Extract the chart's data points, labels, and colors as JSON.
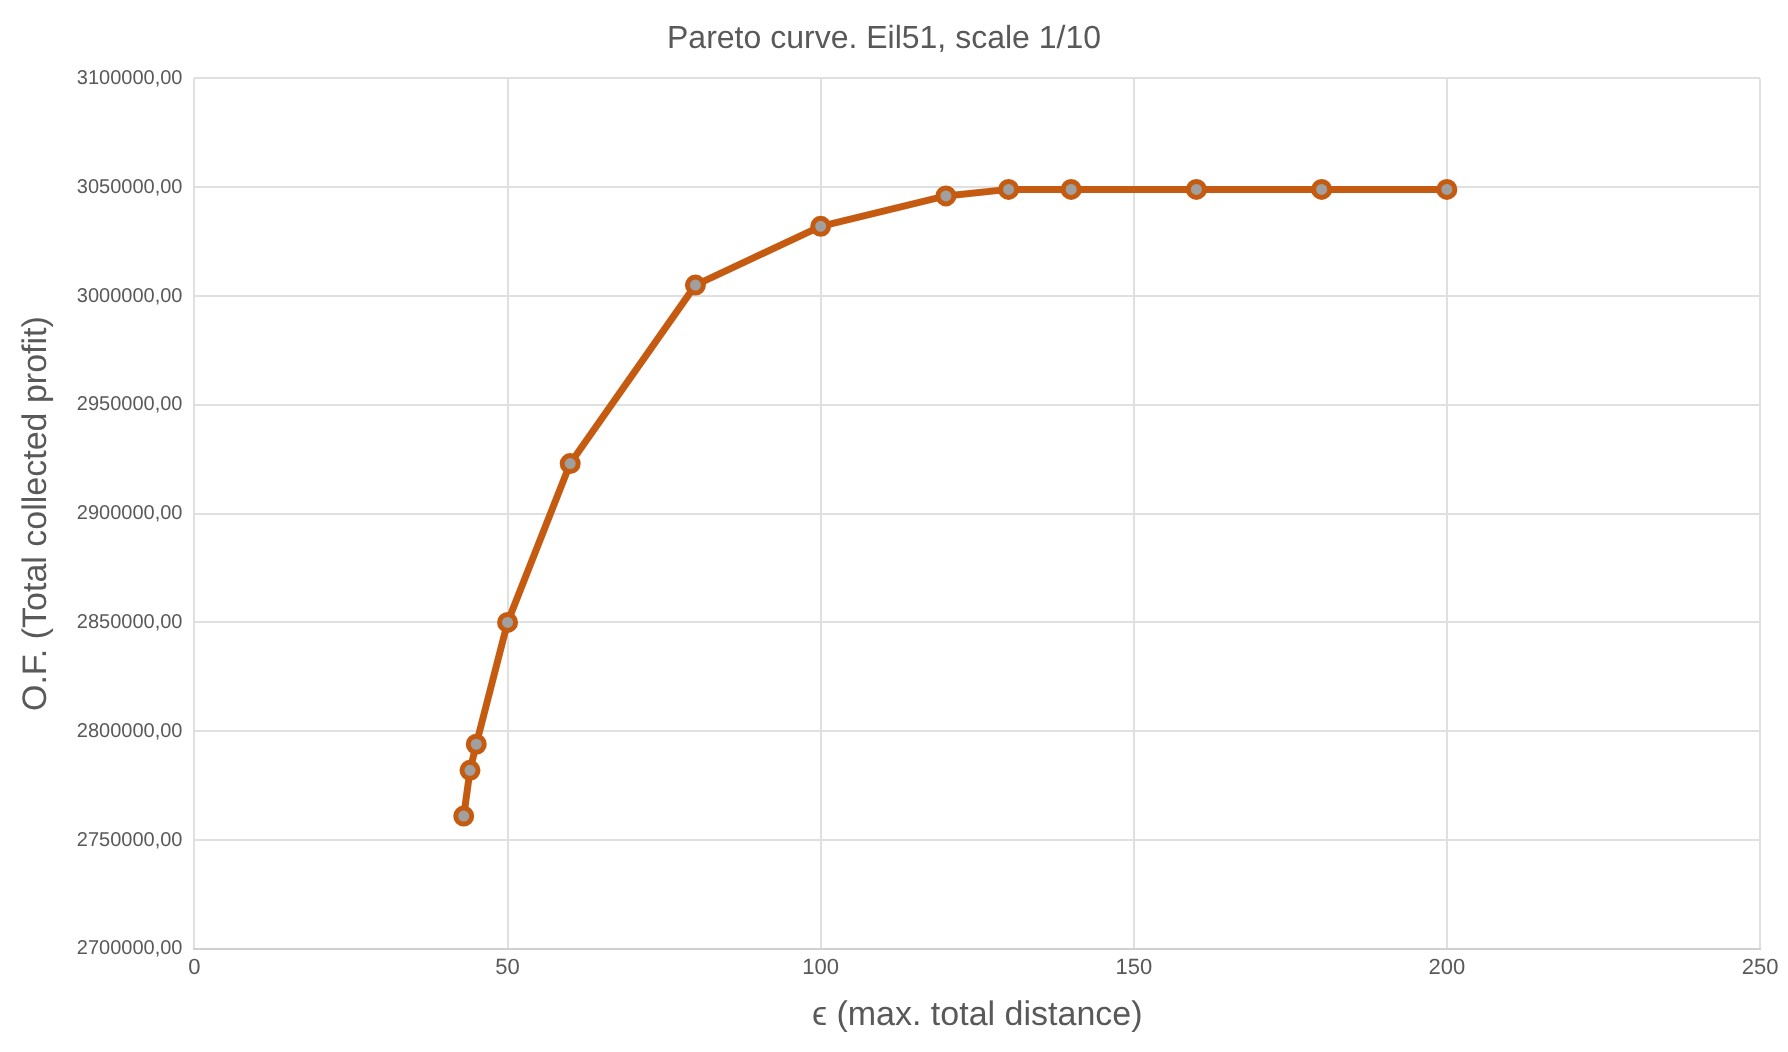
{
  "chart_data": {
    "type": "line",
    "title": "Pareto curve. Eil51, scale 1/10",
    "xlabel": "ϵ (max. total distance)",
    "ylabel": "O.F. (Total collected profit)",
    "x": [
      43,
      44,
      45,
      50,
      60,
      80,
      100,
      120,
      130,
      140,
      160,
      180,
      200
    ],
    "series": [
      {
        "color": "#c55a11",
        "values": [
          2761000,
          2782000,
          2794000,
          2850000,
          2923000,
          3005000,
          3032000,
          3046000,
          3049000,
          3049000,
          3049000,
          3049000,
          3049000
        ]
      }
    ],
    "xlim": [
      0,
      250
    ],
    "xticks": [
      0,
      50,
      100,
      150,
      200,
      250
    ],
    "ylim": [
      2700000,
      3100000
    ],
    "yticks": [
      {
        "value": 2700000,
        "label": "2700000,00"
      },
      {
        "value": 2750000,
        "label": "2750000,00"
      },
      {
        "value": 2800000,
        "label": "2800000,00"
      },
      {
        "value": 2850000,
        "label": "2850000,00"
      },
      {
        "value": 2900000,
        "label": "2900000,00"
      },
      {
        "value": 2950000,
        "label": "2950000,00"
      },
      {
        "value": 3000000,
        "label": "3000000,00"
      },
      {
        "value": 3050000,
        "label": "3050000,00"
      },
      {
        "value": 3100000,
        "label": "3100000,00"
      }
    ],
    "grid": true,
    "legend": false,
    "marker": "circle",
    "line_style": "solid"
  }
}
